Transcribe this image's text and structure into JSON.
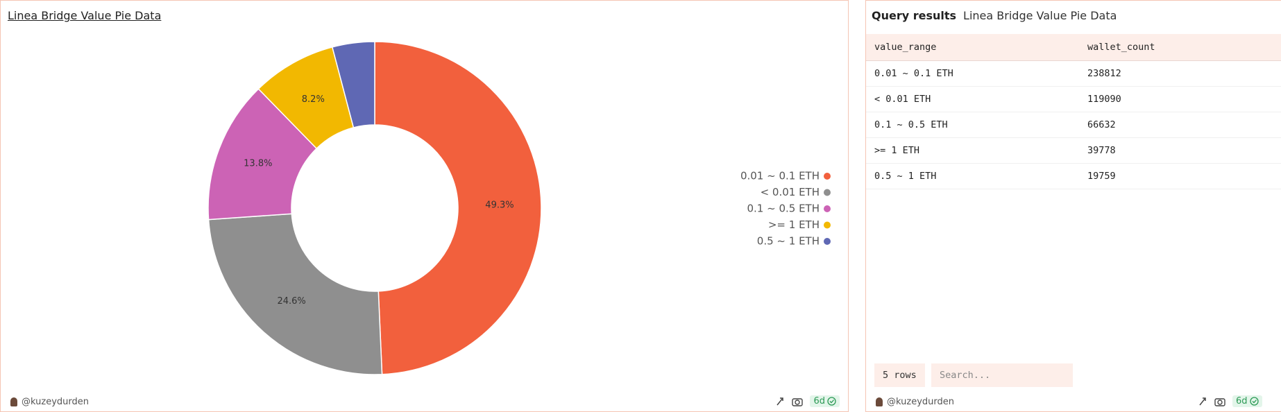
{
  "chart_data": {
    "type": "pie",
    "title": "Linea Bridge Value Pie Data",
    "categories": [
      "0.01 ~ 0.1 ETH",
      "< 0.01 ETH",
      "0.1 ~ 0.5 ETH",
      ">= 1 ETH",
      "0.5 ~ 1 ETH"
    ],
    "values": [
      49.3,
      24.6,
      13.8,
      8.2,
      4.1
    ],
    "value_labels": [
      "49.3%",
      "24.6%",
      "13.8%",
      "8.2%",
      null
    ],
    "colors": [
      "#f2603d",
      "#8f8f8f",
      "#cc63b5",
      "#f2b801",
      "#5f68b4"
    ],
    "legend": "right"
  },
  "query_panel": {
    "heading": "Query results",
    "title": "Linea Bridge Value Pie Data",
    "columns": [
      "value_range",
      "wallet_count"
    ],
    "rows": [
      [
        "0.01 ~ 0.1 ETH",
        "238812"
      ],
      [
        "< 0.01 ETH",
        "119090"
      ],
      [
        "0.1 ~ 0.5 ETH",
        "66632"
      ],
      [
        ">= 1 ETH",
        "39778"
      ],
      [
        "0.5 ~ 1 ETH",
        "19759"
      ]
    ],
    "row_count": "5 rows",
    "search_placeholder": "Search..."
  },
  "footer": {
    "author": "@kuzeydurden",
    "age": "6d"
  }
}
